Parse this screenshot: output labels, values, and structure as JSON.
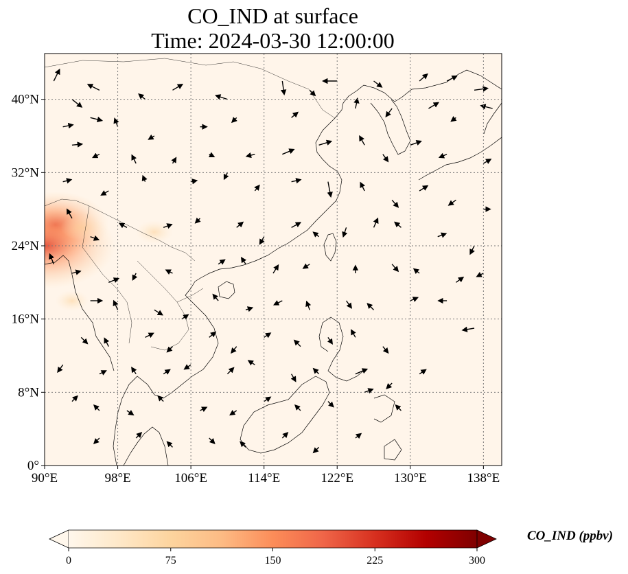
{
  "title": {
    "line1": "CO_IND at surface",
    "line2": "Time: 2024-03-30 12:00:00"
  },
  "map": {
    "lon_range": [
      90,
      140
    ],
    "lat_range": [
      0,
      45
    ],
    "x_ticks": [
      {
        "value": 90,
        "label": "90°E"
      },
      {
        "value": 98,
        "label": "98°E"
      },
      {
        "value": 106,
        "label": "106°E"
      },
      {
        "value": 114,
        "label": "114°E"
      },
      {
        "value": 122,
        "label": "122°E"
      },
      {
        "value": 130,
        "label": "130°E"
      },
      {
        "value": 138,
        "label": "138°E"
      }
    ],
    "y_ticks": [
      {
        "value": 0,
        "label": "0°"
      },
      {
        "value": 8,
        "label": "8°N"
      },
      {
        "value": 16,
        "label": "16°N"
      },
      {
        "value": 24,
        "label": "24°N"
      },
      {
        "value": 32,
        "label": "32°N"
      },
      {
        "value": 40,
        "label": "40°N"
      }
    ],
    "gridlines": "dotted",
    "background_color": "#fff5ea",
    "hotspots": [
      {
        "lon": 91.2,
        "lat": 26.3,
        "value": 110
      },
      {
        "lon": 90.2,
        "lat": 24.0,
        "value": 150
      },
      {
        "lon": 94.0,
        "lat": 26.0,
        "value": 25
      },
      {
        "lon": 102.0,
        "lat": 25.5,
        "value": 20
      },
      {
        "lon": 93.0,
        "lat": 18.0,
        "value": 15
      }
    ],
    "wind_vectors": [
      [
        91,
        42,
        0.6,
        1.2
      ],
      [
        93,
        40,
        1.0,
        -0.8
      ],
      [
        96,
        41,
        -1.2,
        0.6
      ],
      [
        101,
        40,
        -0.6,
        0.5
      ],
      [
        104,
        41,
        1.0,
        0.6
      ],
      [
        110,
        40,
        -1.2,
        0.4
      ],
      [
        116,
        42,
        0.2,
        -1.4
      ],
      [
        119,
        41,
        0.5,
        -0.5
      ],
      [
        122,
        42,
        -1.5,
        0.0
      ],
      [
        126,
        42,
        0.8,
        -0.6
      ],
      [
        131,
        42,
        0.8,
        0.7
      ],
      [
        134,
        42,
        1.0,
        0.5
      ],
      [
        137,
        41,
        1.4,
        0.2
      ],
      [
        139,
        39,
        -1.2,
        0.3
      ],
      [
        92,
        37,
        1.0,
        0.2
      ],
      [
        95,
        38,
        1.2,
        -0.3
      ],
      [
        98,
        37,
        -0.3,
        0.8
      ],
      [
        102,
        36,
        -0.5,
        -0.3
      ],
      [
        107,
        37,
        0.6,
        0.0
      ],
      [
        111,
        38,
        -0.4,
        -0.4
      ],
      [
        117,
        38,
        0.6,
        0.5
      ],
      [
        124,
        39,
        0.2,
        1.0
      ],
      [
        128,
        39,
        -0.6,
        -0.8
      ],
      [
        132,
        39,
        1.0,
        0.6
      ],
      [
        135,
        38,
        -0.4,
        -0.3
      ],
      [
        93,
        35,
        1.0,
        0.1
      ],
      [
        96,
        34,
        -0.6,
        -0.3
      ],
      [
        100,
        33,
        -0.4,
        0.8
      ],
      [
        104,
        33,
        0.3,
        0.5
      ],
      [
        108,
        34,
        0.4,
        -0.2
      ],
      [
        113,
        34,
        -0.8,
        -0.2
      ],
      [
        116,
        34,
        1.2,
        0.5
      ],
      [
        120,
        35,
        1.3,
        0.4
      ],
      [
        125,
        35,
        -0.5,
        0.9
      ],
      [
        127,
        34,
        0.5,
        -0.7
      ],
      [
        130,
        35,
        1.1,
        0.4
      ],
      [
        134,
        34,
        -0.7,
        -0.3
      ],
      [
        138,
        33,
        0.7,
        0.4
      ],
      [
        92,
        31,
        0.8,
        0.2
      ],
      [
        97,
        30,
        -0.7,
        -0.4
      ],
      [
        101,
        31,
        -0.2,
        0.5
      ],
      [
        106,
        31,
        0.5,
        0.1
      ],
      [
        110,
        32,
        -0.3,
        -0.6
      ],
      [
        113,
        30,
        0.4,
        0.5
      ],
      [
        117,
        31,
        0.9,
        0.2
      ],
      [
        121,
        31,
        0.3,
        -1.6
      ],
      [
        125,
        30,
        -0.4,
        0.8
      ],
      [
        128,
        29,
        0.6,
        -0.7
      ],
      [
        131,
        30,
        0.8,
        0.5
      ],
      [
        135,
        29,
        -0.7,
        -0.5
      ],
      [
        138,
        28,
        0.6,
        0.0
      ],
      [
        93,
        27,
        -0.5,
        0.9
      ],
      [
        95,
        25,
        0.8,
        -0.3
      ],
      [
        99,
        26,
        -0.7,
        0.4
      ],
      [
        103,
        26,
        0.8,
        0.3
      ],
      [
        107,
        27,
        -0.4,
        -0.4
      ],
      [
        111,
        26,
        0.6,
        0.5
      ],
      [
        114,
        25,
        -0.4,
        -0.7
      ],
      [
        117,
        26,
        0.9,
        0.5
      ],
      [
        120,
        25,
        -0.5,
        0.4
      ],
      [
        123,
        26,
        -0.3,
        -0.9
      ],
      [
        126,
        26,
        0.4,
        0.9
      ],
      [
        129,
        26,
        -0.6,
        0.5
      ],
      [
        133,
        25,
        0.8,
        0.3
      ],
      [
        137,
        24,
        -0.4,
        -0.8
      ],
      [
        91,
        22,
        -0.4,
        1.0
      ],
      [
        93,
        21,
        0.8,
        0.2
      ],
      [
        97,
        20,
        1.0,
        0.4
      ],
      [
        100,
        21,
        -0.3,
        -0.6
      ],
      [
        104,
        21,
        -0.6,
        0.3
      ],
      [
        109,
        22,
        0.6,
        0.4
      ],
      [
        112,
        22,
        -0.4,
        0.6
      ],
      [
        115,
        21,
        0.5,
        0.8
      ],
      [
        119,
        22,
        -0.6,
        -0.4
      ],
      [
        124,
        21,
        0.0,
        0.7
      ],
      [
        128,
        22,
        0.6,
        -0.7
      ],
      [
        131,
        21,
        -0.5,
        0.4
      ],
      [
        135,
        20,
        0.7,
        0.5
      ],
      [
        138,
        21,
        -0.6,
        -0.3
      ],
      [
        95,
        18,
        1.2,
        0.0
      ],
      [
        98,
        17,
        -0.4,
        0.9
      ],
      [
        102,
        17,
        0.8,
        -0.5
      ],
      [
        105,
        16,
        0.6,
        0.4
      ],
      [
        109,
        18,
        -0.5,
        0.6
      ],
      [
        112,
        17,
        0.6,
        0.2
      ],
      [
        116,
        18,
        -0.8,
        -0.4
      ],
      [
        119,
        17,
        -0.3,
        0.8
      ],
      [
        123,
        18,
        0.5,
        -0.7
      ],
      [
        126,
        17,
        -0.6,
        0.6
      ],
      [
        130,
        18,
        0.7,
        0.3
      ],
      [
        134,
        18,
        -0.8,
        0.0
      ],
      [
        137,
        15,
        -1.2,
        -0.2
      ],
      [
        94,
        14,
        0.6,
        -0.6
      ],
      [
        97,
        13,
        -0.4,
        0.8
      ],
      [
        101,
        14,
        0.8,
        0.4
      ],
      [
        104,
        13,
        -0.5,
        -0.5
      ],
      [
        108,
        14,
        0.6,
        0.5
      ],
      [
        111,
        13,
        -0.5,
        -0.6
      ],
      [
        114,
        14,
        0.6,
        0.4
      ],
      [
        118,
        13,
        -0.6,
        0.6
      ],
      [
        121,
        14,
        0.4,
        -0.6
      ],
      [
        124,
        14,
        -0.4,
        0.7
      ],
      [
        127,
        13,
        0.5,
        -0.6
      ],
      [
        92,
        11,
        -0.5,
        -0.7
      ],
      [
        96,
        10,
        0.6,
        0.3
      ],
      [
        100,
        10,
        -0.4,
        0.6
      ],
      [
        103,
        10,
        0.6,
        0.4
      ],
      [
        106,
        11,
        -0.6,
        -0.4
      ],
      [
        110,
        10,
        0.6,
        0.6
      ],
      [
        113,
        11,
        -0.6,
        0.4
      ],
      [
        117,
        10,
        0.4,
        -0.7
      ],
      [
        120,
        10,
        -0.5,
        0.5
      ],
      [
        124,
        10,
        1.2,
        0.5
      ],
      [
        128,
        9,
        -0.5,
        -0.5
      ],
      [
        131,
        10,
        0.6,
        0.4
      ],
      [
        93,
        7,
        0.5,
        0.5
      ],
      [
        96,
        6,
        -0.5,
        0.5
      ],
      [
        99,
        6,
        0.6,
        -0.4
      ],
      [
        103,
        7,
        -0.5,
        0.5
      ],
      [
        107,
        6,
        0.6,
        0.3
      ],
      [
        111,
        6,
        -0.6,
        -0.4
      ],
      [
        114,
        7,
        0.6,
        0.4
      ],
      [
        118,
        6,
        -0.5,
        0.5
      ],
      [
        121,
        7,
        0.5,
        -0.5
      ],
      [
        125,
        8,
        0.8,
        0.3
      ],
      [
        129,
        6,
        -0.5,
        0.5
      ],
      [
        96,
        3,
        -0.5,
        -0.5
      ],
      [
        100,
        3,
        0.5,
        0.5
      ],
      [
        104,
        2,
        -0.5,
        0.5
      ],
      [
        108,
        3,
        0.5,
        -0.5
      ],
      [
        112,
        2,
        -0.5,
        0.5
      ],
      [
        116,
        3,
        0.5,
        0.5
      ],
      [
        120,
        2,
        -0.5,
        -0.5
      ],
      [
        124,
        3,
        0.5,
        0.4
      ]
    ]
  },
  "colorbar": {
    "label": "CO_IND (ppbv)",
    "min": 0,
    "max": 300,
    "extend": "both",
    "colormap": "OrRd",
    "stops": [
      "#fff7ec",
      "#fee8c8",
      "#fdd49e",
      "#fdbb84",
      "#fc8d59",
      "#ef6548",
      "#d7301f",
      "#b30000",
      "#7f0000"
    ],
    "ticks": [
      {
        "value": 0,
        "label": "0"
      },
      {
        "value": 75,
        "label": "75"
      },
      {
        "value": 150,
        "label": "150"
      },
      {
        "value": 225,
        "label": "225"
      },
      {
        "value": 300,
        "label": "300"
      }
    ]
  }
}
